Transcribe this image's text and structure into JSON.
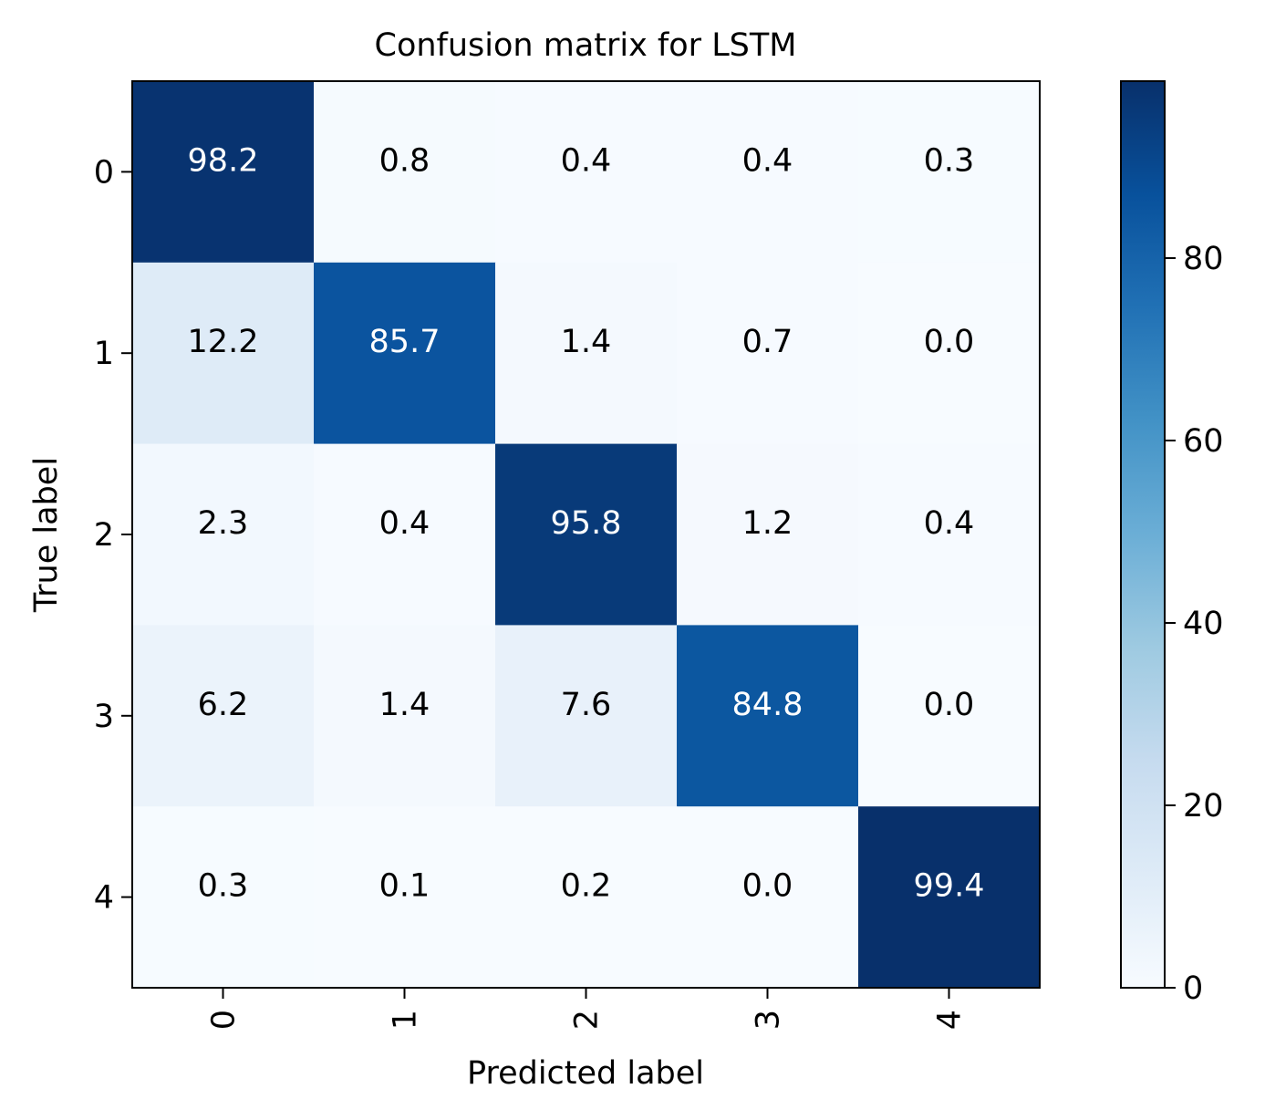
{
  "chart_data": {
    "type": "heatmap",
    "title": "Confusion matrix for LSTM",
    "xlabel": "Predicted label",
    "ylabel": "True label",
    "x_categories": [
      "0",
      "1",
      "2",
      "3",
      "4"
    ],
    "y_categories": [
      "0",
      "1",
      "2",
      "3",
      "4"
    ],
    "values": [
      [
        98.2,
        0.8,
        0.4,
        0.4,
        0.3
      ],
      [
        12.2,
        85.7,
        1.4,
        0.7,
        0.0
      ],
      [
        2.3,
        0.4,
        95.8,
        1.2,
        0.4
      ],
      [
        6.2,
        1.4,
        7.6,
        84.8,
        0.0
      ],
      [
        0.3,
        0.1,
        0.2,
        0.0,
        99.4
      ]
    ],
    "value_labels": [
      [
        "98.2",
        "0.8",
        "0.4",
        "0.4",
        "0.3"
      ],
      [
        "12.2",
        "85.7",
        "1.4",
        "0.7",
        "0.0"
      ],
      [
        "2.3",
        "0.4",
        "95.8",
        "1.2",
        "0.4"
      ],
      [
        "6.2",
        "1.4",
        "7.6",
        "84.8",
        "0.0"
      ],
      [
        "0.3",
        "0.1",
        "0.2",
        "0.0",
        "99.4"
      ]
    ],
    "colormap": "Blues",
    "colorbar": {
      "range": [
        0,
        99.4
      ],
      "ticks": [
        0,
        20,
        40,
        60,
        80
      ],
      "tick_labels": [
        "0",
        "20",
        "40",
        "60",
        "80"
      ]
    },
    "x_tick_rotation": "vertical",
    "grid": false
  }
}
